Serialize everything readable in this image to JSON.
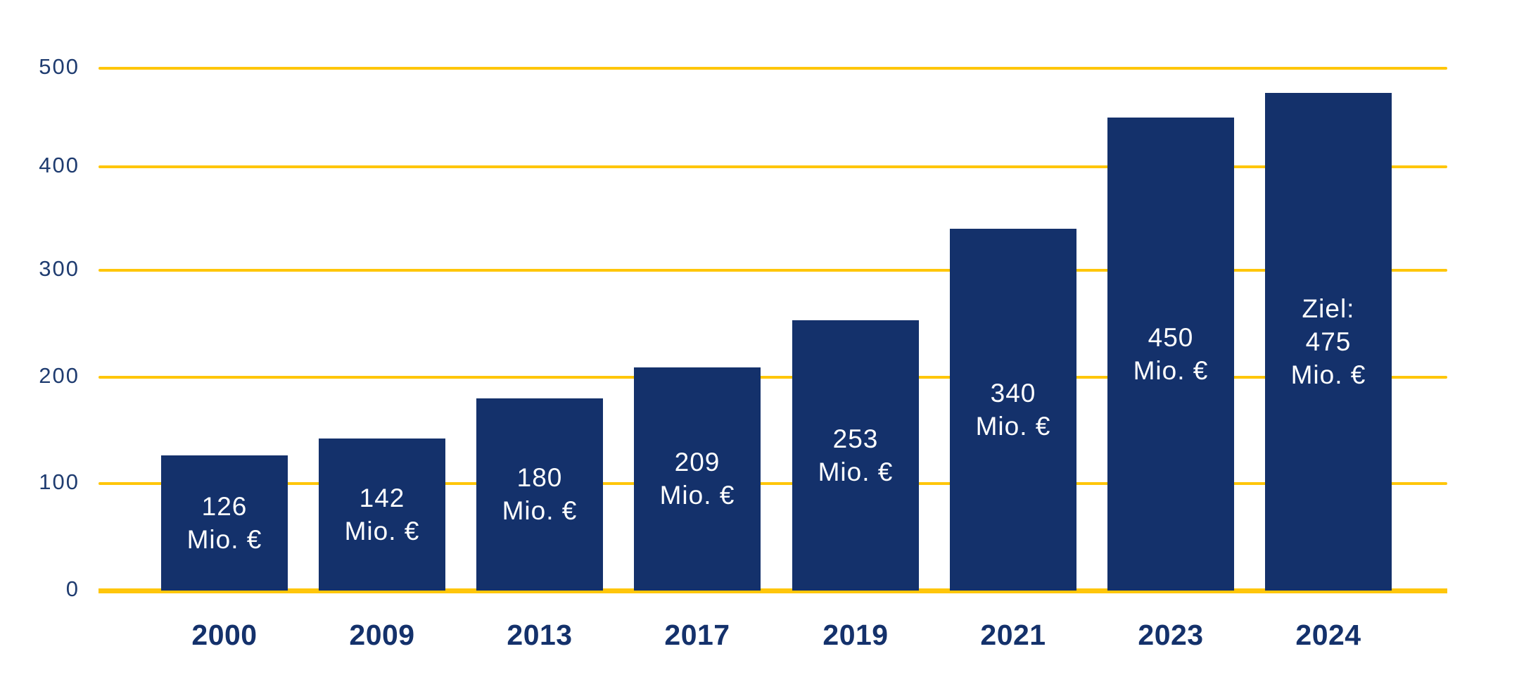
{
  "page": {
    "background": "#FFFFFF"
  },
  "chart_data": {
    "type": "bar",
    "title": "",
    "unit": "Mio. €",
    "categories": [
      "2000",
      "2009",
      "2013",
      "2017",
      "2019",
      "2021",
      "2023",
      "2024"
    ],
    "values": [
      126,
      142,
      180,
      209,
      253,
      340,
      450,
      475
    ],
    "bar_labels": [
      [
        "126",
        "Mio. €"
      ],
      [
        "142",
        "Mio. €"
      ],
      [
        "180",
        "Mio. €"
      ],
      [
        "209",
        "Mio. €"
      ],
      [
        "253",
        "Mio. €"
      ],
      [
        "340",
        "Mio. €"
      ],
      [
        "450",
        "Mio. €"
      ],
      [
        "Ziel:",
        "475",
        "Mio. €"
      ]
    ],
    "last_bar_prefix": "Ziel:",
    "xlabel": "",
    "ylabel": "",
    "ylim": [
      0,
      500
    ],
    "yticks": [
      0,
      100,
      200,
      300,
      400,
      500
    ],
    "ytick_labels": [
      "0",
      "100",
      "200",
      "300",
      "400",
      "500"
    ],
    "grid": "horizontal",
    "legend": "none",
    "colors": {
      "bar": "#14316B",
      "grid_line": "#FFC60A",
      "baseline": "#FFC60A",
      "bar_label_text": "#FFFFFF",
      "axis_tick_text": "#1F3C70",
      "category_text": "#14316B",
      "background": "#FFFFFF"
    }
  }
}
